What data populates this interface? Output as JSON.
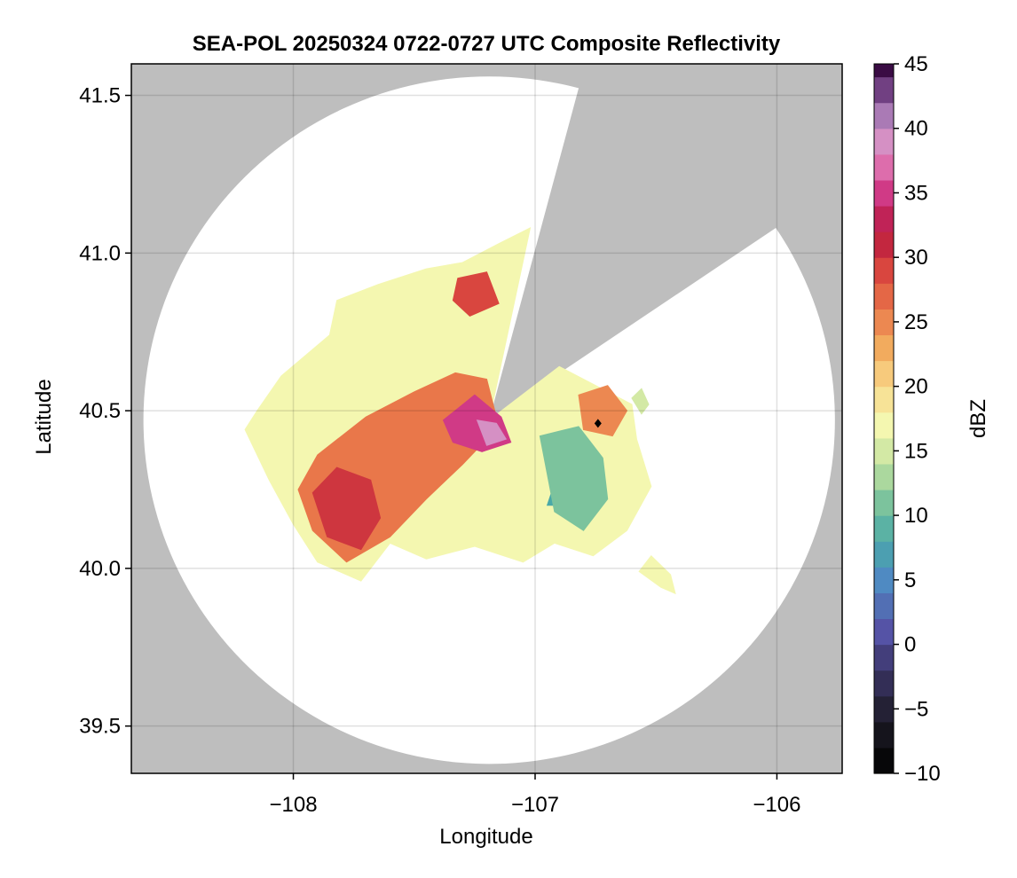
{
  "chart_data": {
    "type": "heatmap",
    "title": "SEA-POL 20250324 0722-0727 UTC Composite Reflectivity",
    "xlabel": "Longitude",
    "ylabel": "Latitude",
    "xlim": [
      -108.67,
      -105.73
    ],
    "ylim": [
      39.35,
      41.6
    ],
    "xticks": [
      -108,
      -107,
      -106
    ],
    "xtick_labels": [
      "−108",
      "−107",
      "−106"
    ],
    "yticks": [
      39.5,
      40.0,
      40.5,
      41.0,
      41.5
    ],
    "ytick_labels": [
      "39.5",
      "40.0",
      "40.5",
      "41.0",
      "41.5"
    ],
    "grid": true,
    "background_color": "#bebebe",
    "radar": {
      "center_lon": -107.19,
      "center_lat": 40.47,
      "max_range_lon_deg": 1.43,
      "max_range_lat_deg": 1.09,
      "blocked_sectors_deg_from_north": [
        [
          15,
          56
        ]
      ]
    },
    "marker": {
      "lon": -106.74,
      "lat": 40.46,
      "shape": "diamond",
      "color": "#000000"
    },
    "colorbar": {
      "label": "dBZ",
      "vmin": -10,
      "vmax": 45,
      "step": 2,
      "ticks": [
        -10,
        -5,
        0,
        5,
        10,
        15,
        20,
        25,
        30,
        35,
        40,
        45
      ],
      "tick_labels": [
        "−10",
        "−5",
        "0",
        "5",
        "10",
        "15",
        "20",
        "25",
        "30",
        "35",
        "40",
        "45"
      ],
      "colormap_stops": [
        {
          "v": -10,
          "c": "#000000"
        },
        {
          "v": -6,
          "c": "#1c1b25"
        },
        {
          "v": -2,
          "c": "#3a3466"
        },
        {
          "v": 1,
          "c": "#5553a6"
        },
        {
          "v": 5,
          "c": "#4f8ac2"
        },
        {
          "v": 8,
          "c": "#4aa9a8"
        },
        {
          "v": 11,
          "c": "#7cc39d"
        },
        {
          "v": 14,
          "c": "#c3e29f"
        },
        {
          "v": 17,
          "c": "#f4f7b0"
        },
        {
          "v": 20,
          "c": "#f9d98b"
        },
        {
          "v": 23,
          "c": "#f2ab5e"
        },
        {
          "v": 26,
          "c": "#e9774a"
        },
        {
          "v": 29,
          "c": "#d9463f"
        },
        {
          "v": 32,
          "c": "#b8173f"
        },
        {
          "v": 35,
          "c": "#d03a86"
        },
        {
          "v": 38,
          "c": "#e386bf"
        },
        {
          "v": 40,
          "c": "#c79ac8"
        },
        {
          "v": 42,
          "c": "#8c5aa1"
        },
        {
          "v": 45,
          "c": "#3a0c44"
        }
      ]
    },
    "echo_regions": [
      {
        "name": "main-echo",
        "dbz": 17,
        "polygon": [
          [
            -108.15,
            40.5
          ],
          [
            -108.05,
            40.61
          ],
          [
            -107.85,
            40.74
          ],
          [
            -107.82,
            40.85
          ],
          [
            -107.65,
            40.9
          ],
          [
            -107.45,
            40.95
          ],
          [
            -107.3,
            40.97
          ],
          [
            -107.15,
            41.03
          ],
          [
            -107.02,
            41.08
          ],
          [
            -107.19,
            40.47
          ],
          [
            -106.9,
            40.64
          ],
          [
            -106.6,
            40.52
          ],
          [
            -106.58,
            40.41
          ],
          [
            -106.52,
            40.26
          ],
          [
            -106.62,
            40.12
          ],
          [
            -106.76,
            40.04
          ],
          [
            -106.92,
            40.08
          ],
          [
            -107.05,
            40.02
          ],
          [
            -107.25,
            40.07
          ],
          [
            -107.45,
            40.03
          ],
          [
            -107.6,
            40.08
          ],
          [
            -107.72,
            39.96
          ],
          [
            -107.9,
            40.02
          ],
          [
            -108.0,
            40.14
          ],
          [
            -108.1,
            40.28
          ],
          [
            -108.2,
            40.44
          ]
        ]
      },
      {
        "name": "southwest-rain-band",
        "dbz": 26,
        "polygon": [
          [
            -107.98,
            40.25
          ],
          [
            -107.9,
            40.36
          ],
          [
            -107.7,
            40.48
          ],
          [
            -107.5,
            40.56
          ],
          [
            -107.33,
            40.62
          ],
          [
            -107.2,
            40.6
          ],
          [
            -107.15,
            40.45
          ],
          [
            -107.3,
            40.33
          ],
          [
            -107.45,
            40.22
          ],
          [
            -107.6,
            40.1
          ],
          [
            -107.78,
            40.02
          ],
          [
            -107.92,
            40.12
          ]
        ]
      },
      {
        "name": "southwest-core",
        "dbz": 30,
        "polygon": [
          [
            -107.92,
            40.24
          ],
          [
            -107.82,
            40.32
          ],
          [
            -107.68,
            40.28
          ],
          [
            -107.64,
            40.16
          ],
          [
            -107.72,
            40.06
          ],
          [
            -107.86,
            40.1
          ]
        ]
      },
      {
        "name": "north-cell",
        "dbz": 29,
        "polygon": [
          [
            -107.32,
            40.92
          ],
          [
            -107.2,
            40.94
          ],
          [
            -107.15,
            40.84
          ],
          [
            -107.27,
            40.8
          ],
          [
            -107.34,
            40.85
          ]
        ]
      },
      {
        "name": "radar-center-core",
        "dbz": 35,
        "polygon": [
          [
            -107.38,
            40.47
          ],
          [
            -107.25,
            40.55
          ],
          [
            -107.14,
            40.48
          ],
          [
            -107.1,
            40.4
          ],
          [
            -107.22,
            40.37
          ],
          [
            -107.34,
            40.4
          ]
        ]
      },
      {
        "name": "bright-center-core",
        "dbz": 39,
        "polygon": [
          [
            -107.24,
            40.47
          ],
          [
            -107.16,
            40.46
          ],
          [
            -107.12,
            40.41
          ],
          [
            -107.2,
            40.39
          ]
        ]
      },
      {
        "name": "east-cell",
        "dbz": 25,
        "polygon": [
          [
            -106.82,
            40.55
          ],
          [
            -106.7,
            40.58
          ],
          [
            -106.62,
            40.5
          ],
          [
            -106.68,
            40.42
          ],
          [
            -106.8,
            40.44
          ]
        ]
      },
      {
        "name": "east-teal-band",
        "dbz": 8,
        "polygon": [
          [
            -106.95,
            40.2
          ],
          [
            -106.88,
            40.36
          ],
          [
            -106.8,
            40.33
          ],
          [
            -106.84,
            40.2
          ]
        ]
      },
      {
        "name": "east-shallow-band",
        "dbz": 11,
        "polygon": [
          [
            -106.98,
            40.42
          ],
          [
            -106.82,
            40.45
          ],
          [
            -106.72,
            40.35
          ],
          [
            -106.7,
            40.22
          ],
          [
            -106.8,
            40.12
          ],
          [
            -106.92,
            40.18
          ]
        ]
      },
      {
        "name": "southeast-isolated-cell",
        "dbz": 17,
        "polygon": [
          [
            -106.57,
            39.99
          ],
          [
            -106.48,
            39.94
          ],
          [
            -106.42,
            39.92
          ],
          [
            -106.44,
            39.98
          ],
          [
            -106.52,
            40.04
          ]
        ]
      },
      {
        "name": "east-small-cell",
        "dbz": 15,
        "polygon": [
          [
            -106.6,
            40.54
          ],
          [
            -106.56,
            40.57
          ],
          [
            -106.53,
            40.52
          ],
          [
            -106.56,
            40.49
          ]
        ]
      }
    ]
  }
}
